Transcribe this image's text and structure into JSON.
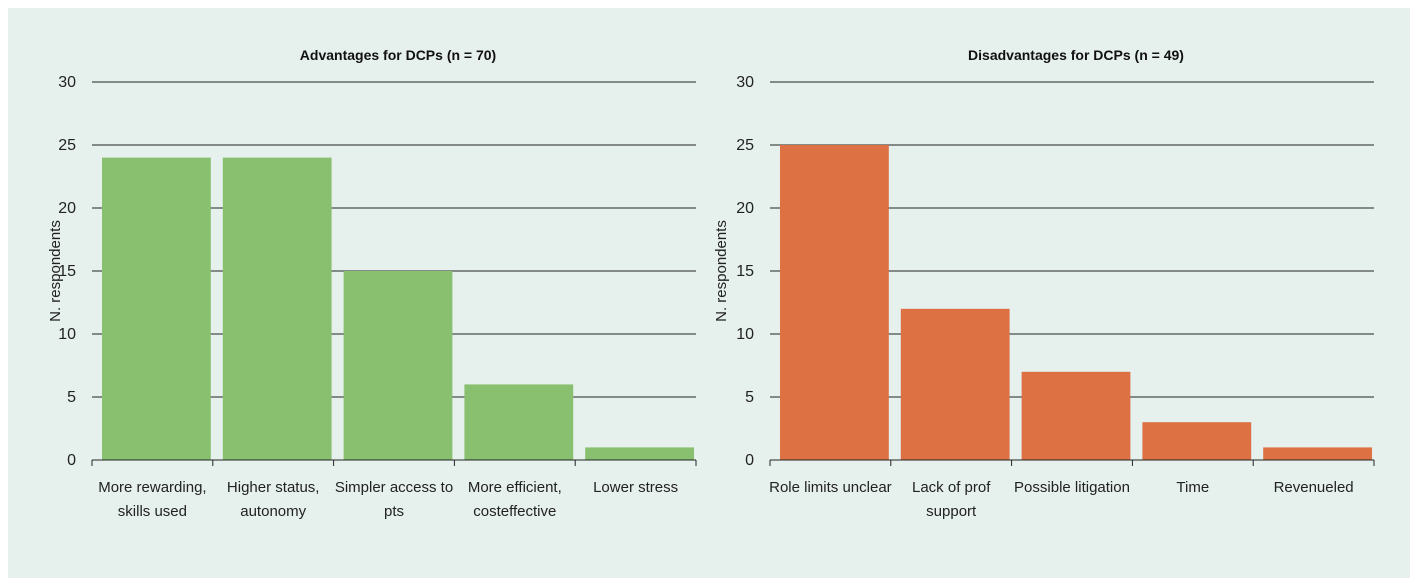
{
  "background_color": "#e6f1ee",
  "chart_data": [
    {
      "type": "bar",
      "title": "Advantages for DCPs (n = 70)",
      "xlabel": "",
      "ylabel": "N. respondents",
      "categories": [
        [
          "More rewarding,",
          "skills used"
        ],
        [
          "Higher status,",
          "autonomy"
        ],
        [
          "Simpler access to",
          "pts"
        ],
        [
          "More efficient,",
          "costeffective"
        ],
        [
          "Lower stress"
        ]
      ],
      "values": [
        24,
        24,
        15,
        6,
        1
      ],
      "ylim": [
        0,
        30
      ],
      "yticks": [
        "0",
        "5",
        "10",
        "15",
        "20",
        "25",
        "30"
      ],
      "color": "#88c070",
      "grid": true
    },
    {
      "type": "bar",
      "title": "Disadvantages for DCPs (n = 49)",
      "xlabel": "",
      "ylabel": "N. respondents",
      "categories": [
        [
          "Role limits unclear"
        ],
        [
          "Lack of prof",
          "support"
        ],
        [
          "Possible litigation"
        ],
        [
          "Time"
        ],
        [
          "Revenueled"
        ]
      ],
      "values": [
        25,
        12,
        7,
        3,
        1
      ],
      "ylim": [
        0,
        30
      ],
      "yticks": [
        "0",
        "5",
        "10",
        "15",
        "20",
        "25",
        "30"
      ],
      "color": "#dd7144",
      "grid": true
    }
  ]
}
